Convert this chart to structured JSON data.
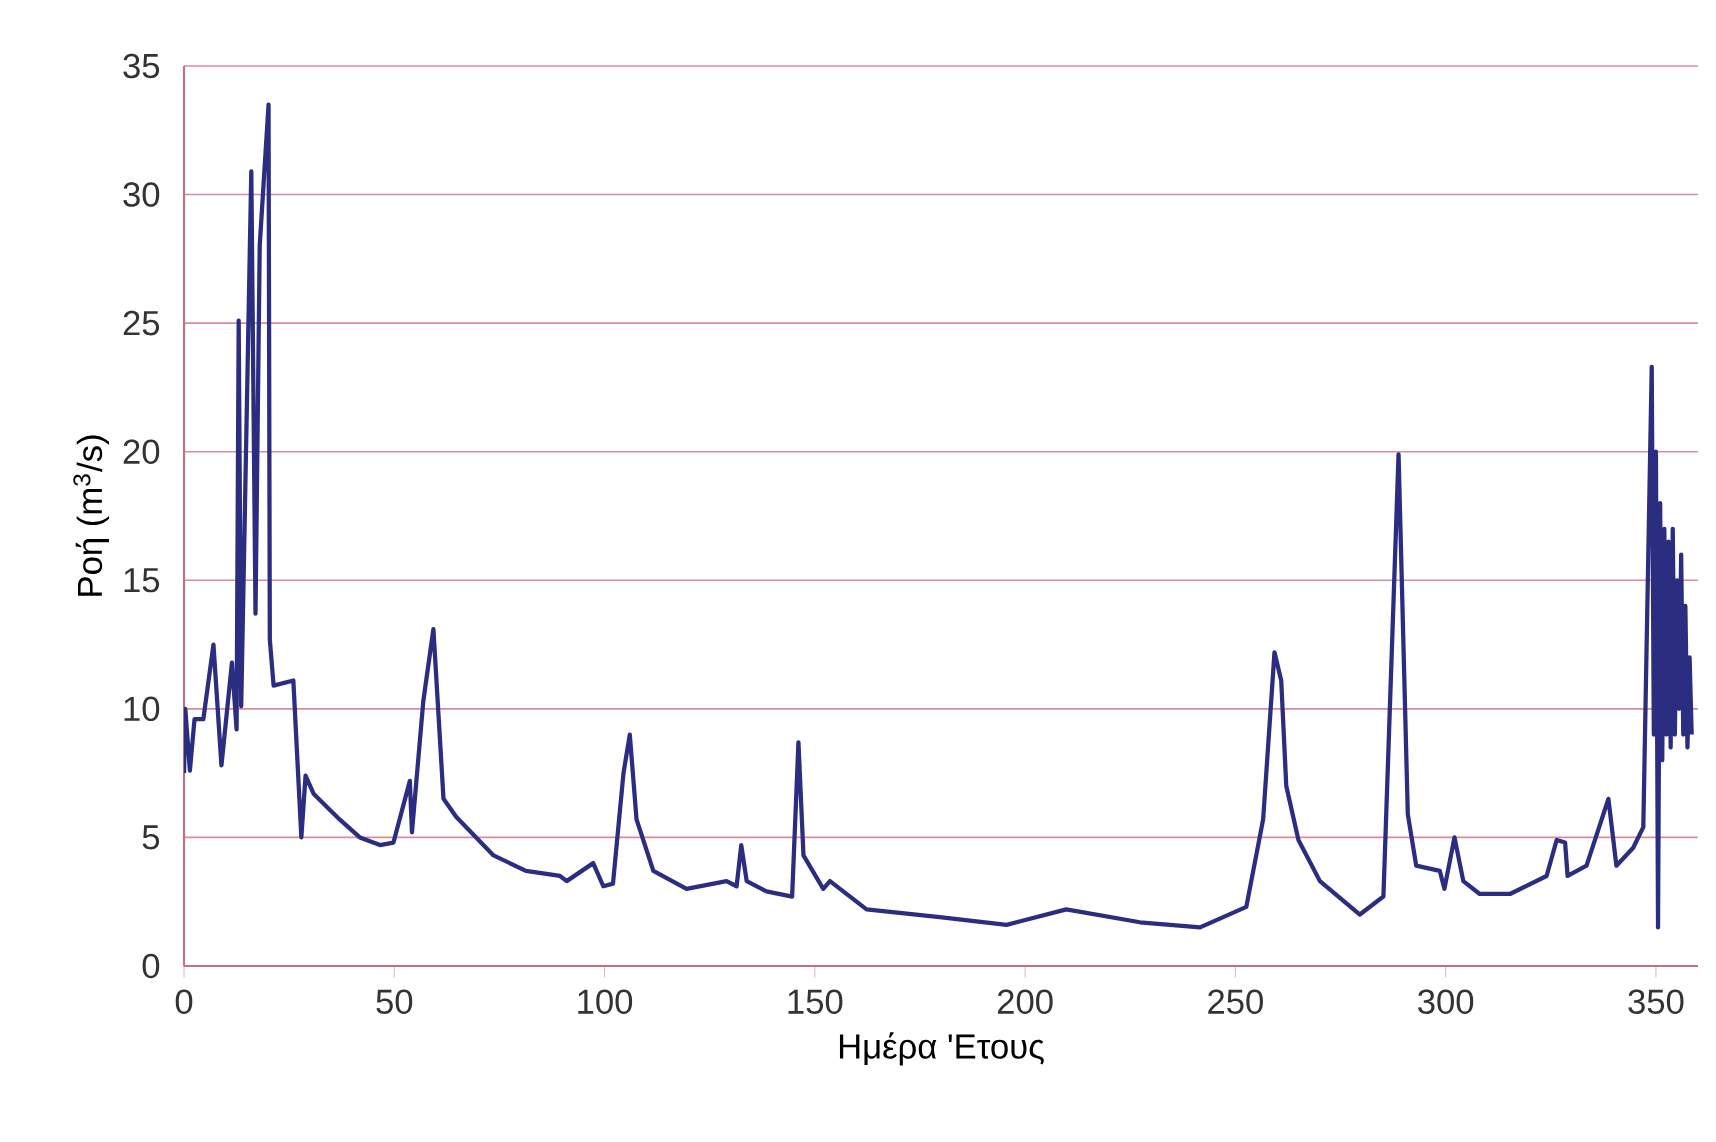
{
  "chart_data": {
    "type": "line",
    "xlabel": "Ημέρα 'Ετους",
    "ylabel": "Ροή (m$^{3}$/s)",
    "xlim": [
      0,
      360
    ],
    "ylim": [
      0,
      35
    ],
    "xticks": [
      0,
      50,
      100,
      150,
      200,
      250,
      300,
      350
    ],
    "yticks": [
      0,
      5,
      10,
      15,
      20,
      25,
      30,
      35
    ],
    "grid": "y",
    "marker": "none",
    "line_style": "solid",
    "series": [
      {
        "color": "#2b2d80",
        "x": [
          0,
          0.3,
          1.4,
          2.5,
          4.6,
          7,
          8.9,
          11.4,
          12.5,
          13,
          13.6,
          16,
          17,
          18,
          20.1,
          20.4,
          21.3,
          26,
          27.9,
          28.9,
          30.8,
          37,
          41.8,
          46.6,
          49.8,
          53.7,
          54.2,
          56.9,
          59.3,
          61.7,
          64.7,
          73.6,
          81.3,
          89.4,
          91,
          97.3,
          99.7,
          102,
          104.5,
          106,
          107.6,
          111.6,
          119.5,
          129,
          131.4,
          132.5,
          133.8,
          138.5,
          144.6,
          146.1,
          147.3,
          152,
          153.6,
          162.3,
          179.7,
          195.6,
          209.8,
          227.3,
          241.6,
          252.6,
          256.6,
          259.3,
          260.9,
          262.1,
          265,
          270.1,
          279.6,
          285.2,
          288.8,
          291,
          293,
          298.6,
          299.7,
          302.1,
          304.2,
          308.1,
          315.3,
          324,
          326.4,
          328.4,
          329,
          333.5,
          338.7,
          340.6,
          344.6,
          347,
          349,
          349.5,
          350,
          350.5,
          351,
          351.5,
          352,
          352.5,
          353,
          353.5,
          354,
          354.5,
          355,
          355.5,
          356,
          356.5,
          357,
          357.5,
          358,
          358.5
        ],
        "values": [
          7.5,
          10.0,
          7.6,
          9.6,
          9.6,
          12.5,
          7.8,
          11.8,
          9.2,
          25.1,
          10.1,
          30.9,
          13.7,
          28,
          33.5,
          12.7,
          10.9,
          11.1,
          5.0,
          7.4,
          6.7,
          5.7,
          5.0,
          4.7,
          4.8,
          7.2,
          5.2,
          10.3,
          13.1,
          6.5,
          5.8,
          4.3,
          3.7,
          3.5,
          3.3,
          4.0,
          3.1,
          3.2,
          7.5,
          9.0,
          5.7,
          3.7,
          3.0,
          3.3,
          3.1,
          4.7,
          3.3,
          2.9,
          2.7,
          8.7,
          4.3,
          3.0,
          3.3,
          2.2,
          1.9,
          1.6,
          2.2,
          1.7,
          1.5,
          2.3,
          5.7,
          12.2,
          11.1,
          7.0,
          4.9,
          3.3,
          2.0,
          2.7,
          19.9,
          5.9,
          3.9,
          3.7,
          3.0,
          5.0,
          3.3,
          2.8,
          2.8,
          3.5,
          4.9,
          4.8,
          3.5,
          3.9,
          6.5,
          3.9,
          4.6,
          5.4,
          23.3,
          9,
          20,
          1.5,
          18,
          8,
          17,
          9,
          16.5,
          8.5,
          17,
          9,
          15,
          10,
          16,
          9,
          14,
          8.5,
          12,
          9
        ]
      }
    ]
  }
}
